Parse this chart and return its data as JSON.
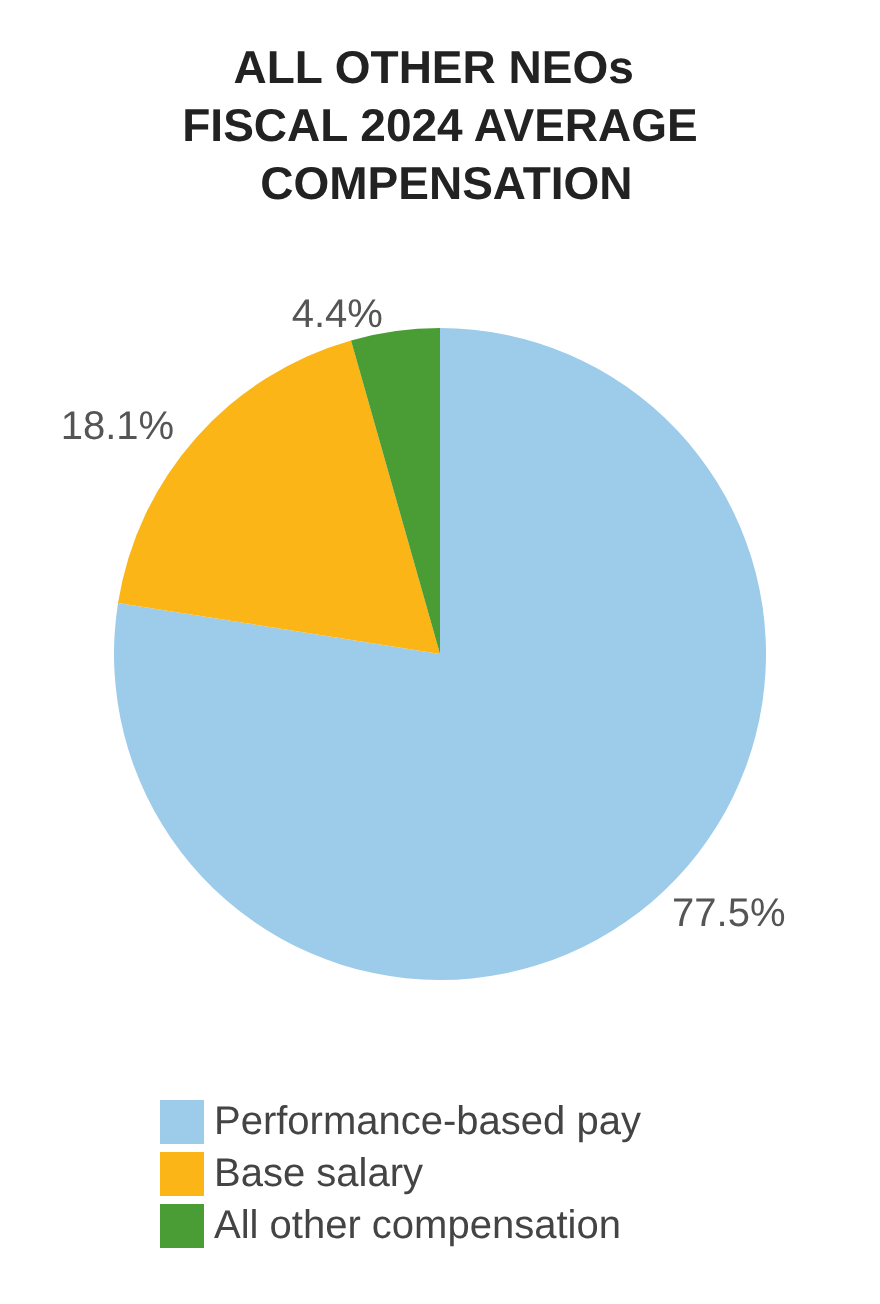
{
  "chart_data": {
    "type": "pie",
    "title": "ALL OTHER NEOs FISCAL 2024 AVERAGE COMPENSATION",
    "categories": [
      "Performance-based pay",
      "Base salary",
      "All other compensation"
    ],
    "values": [
      77.5,
      18.1,
      4.4
    ],
    "colors": [
      "#9dcbea",
      "#fbb517",
      "#4a9c35"
    ],
    "value_labels": [
      "77.5%",
      "18.1%",
      "4.4%"
    ],
    "legend": "bottom"
  }
}
